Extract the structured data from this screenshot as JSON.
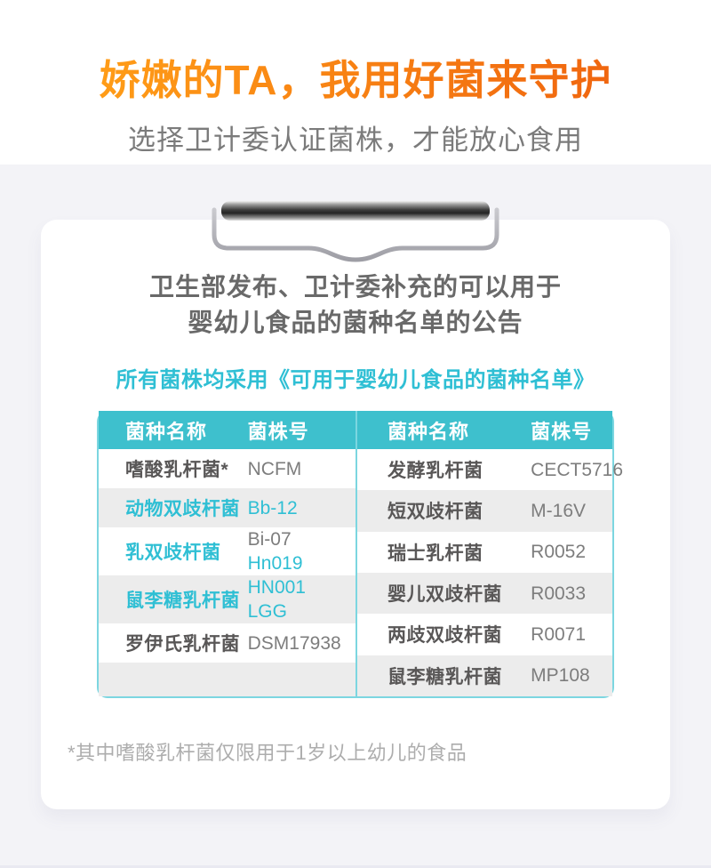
{
  "header": {
    "title": "娇嫩的TA，我用好菌来守护",
    "subtitle": "选择卫计委认证菌株，才能放心食用"
  },
  "announcement": {
    "line1": "卫生部发布、卫计委补充的可以用于",
    "line2": "婴幼儿食品的菌种名单的公告"
  },
  "tagline": "所有菌株均采用《可用于婴幼儿食品的菌种名单》",
  "footnote": "*其中嗜酸乳杆菌仅限用于1岁以上幼儿的食品",
  "icons": {
    "clip": "clipboard-clip"
  },
  "colors": {
    "title_orange_start": "#FF9C17",
    "title_orange_end": "#F0660F",
    "subtitle_gray": "#7B7B7B",
    "announcement_gray": "#696969",
    "accent_teal": "#2FBFD4",
    "header_teal": "#3EC0CD",
    "table_border_teal": "#7CD6E0",
    "row_shade": "#ECECEC",
    "name_dark": "#595757",
    "value_gray": "#7D7D7D",
    "footnote_gray": "#ADADAD",
    "page_bg": "#F3F3F7"
  },
  "table": {
    "left": {
      "headers": [
        "菌种名称",
        "菌株号"
      ],
      "rows": [
        {
          "name": "嗜酸乳杆菌*",
          "teal_name": false,
          "values": [
            {
              "text": "NCFM",
              "teal": false
            }
          ]
        },
        {
          "name": "动物双歧杆菌",
          "teal_name": true,
          "values": [
            {
              "text": "Bb-12",
              "teal": true
            }
          ]
        },
        {
          "name": "乳双歧杆菌",
          "teal_name": true,
          "values": [
            {
              "text": "Bi-07",
              "teal": false
            },
            {
              "text": "Hn019",
              "teal": true
            }
          ]
        },
        {
          "name": "鼠李糖乳杆菌",
          "teal_name": true,
          "values": [
            {
              "text": "HN001",
              "teal": true
            },
            {
              "text": "LGG",
              "teal": true
            }
          ]
        },
        {
          "name": "罗伊氏乳杆菌",
          "teal_name": false,
          "values": [
            {
              "text": "DSM17938",
              "teal": false
            }
          ]
        },
        {
          "name": "",
          "teal_name": false,
          "values": []
        }
      ]
    },
    "right": {
      "headers": [
        "菌种名称",
        "菌株号"
      ],
      "rows": [
        {
          "name": "发酵乳杆菌",
          "teal_name": false,
          "values": [
            {
              "text": "CECT5716",
              "teal": false
            }
          ]
        },
        {
          "name": "短双歧杆菌",
          "teal_name": false,
          "values": [
            {
              "text": "M-16V",
              "teal": false
            }
          ]
        },
        {
          "name": "瑞士乳杆菌",
          "teal_name": false,
          "values": [
            {
              "text": "R0052",
              "teal": false
            }
          ]
        },
        {
          "name": "婴儿双歧杆菌",
          "teal_name": false,
          "values": [
            {
              "text": "R0033",
              "teal": false
            }
          ]
        },
        {
          "name": "两歧双歧杆菌",
          "teal_name": false,
          "values": [
            {
              "text": "R0071",
              "teal": false
            }
          ]
        },
        {
          "name": "鼠李糖乳杆菌",
          "teal_name": false,
          "values": [
            {
              "text": "MP108",
              "teal": false
            }
          ]
        }
      ]
    }
  }
}
